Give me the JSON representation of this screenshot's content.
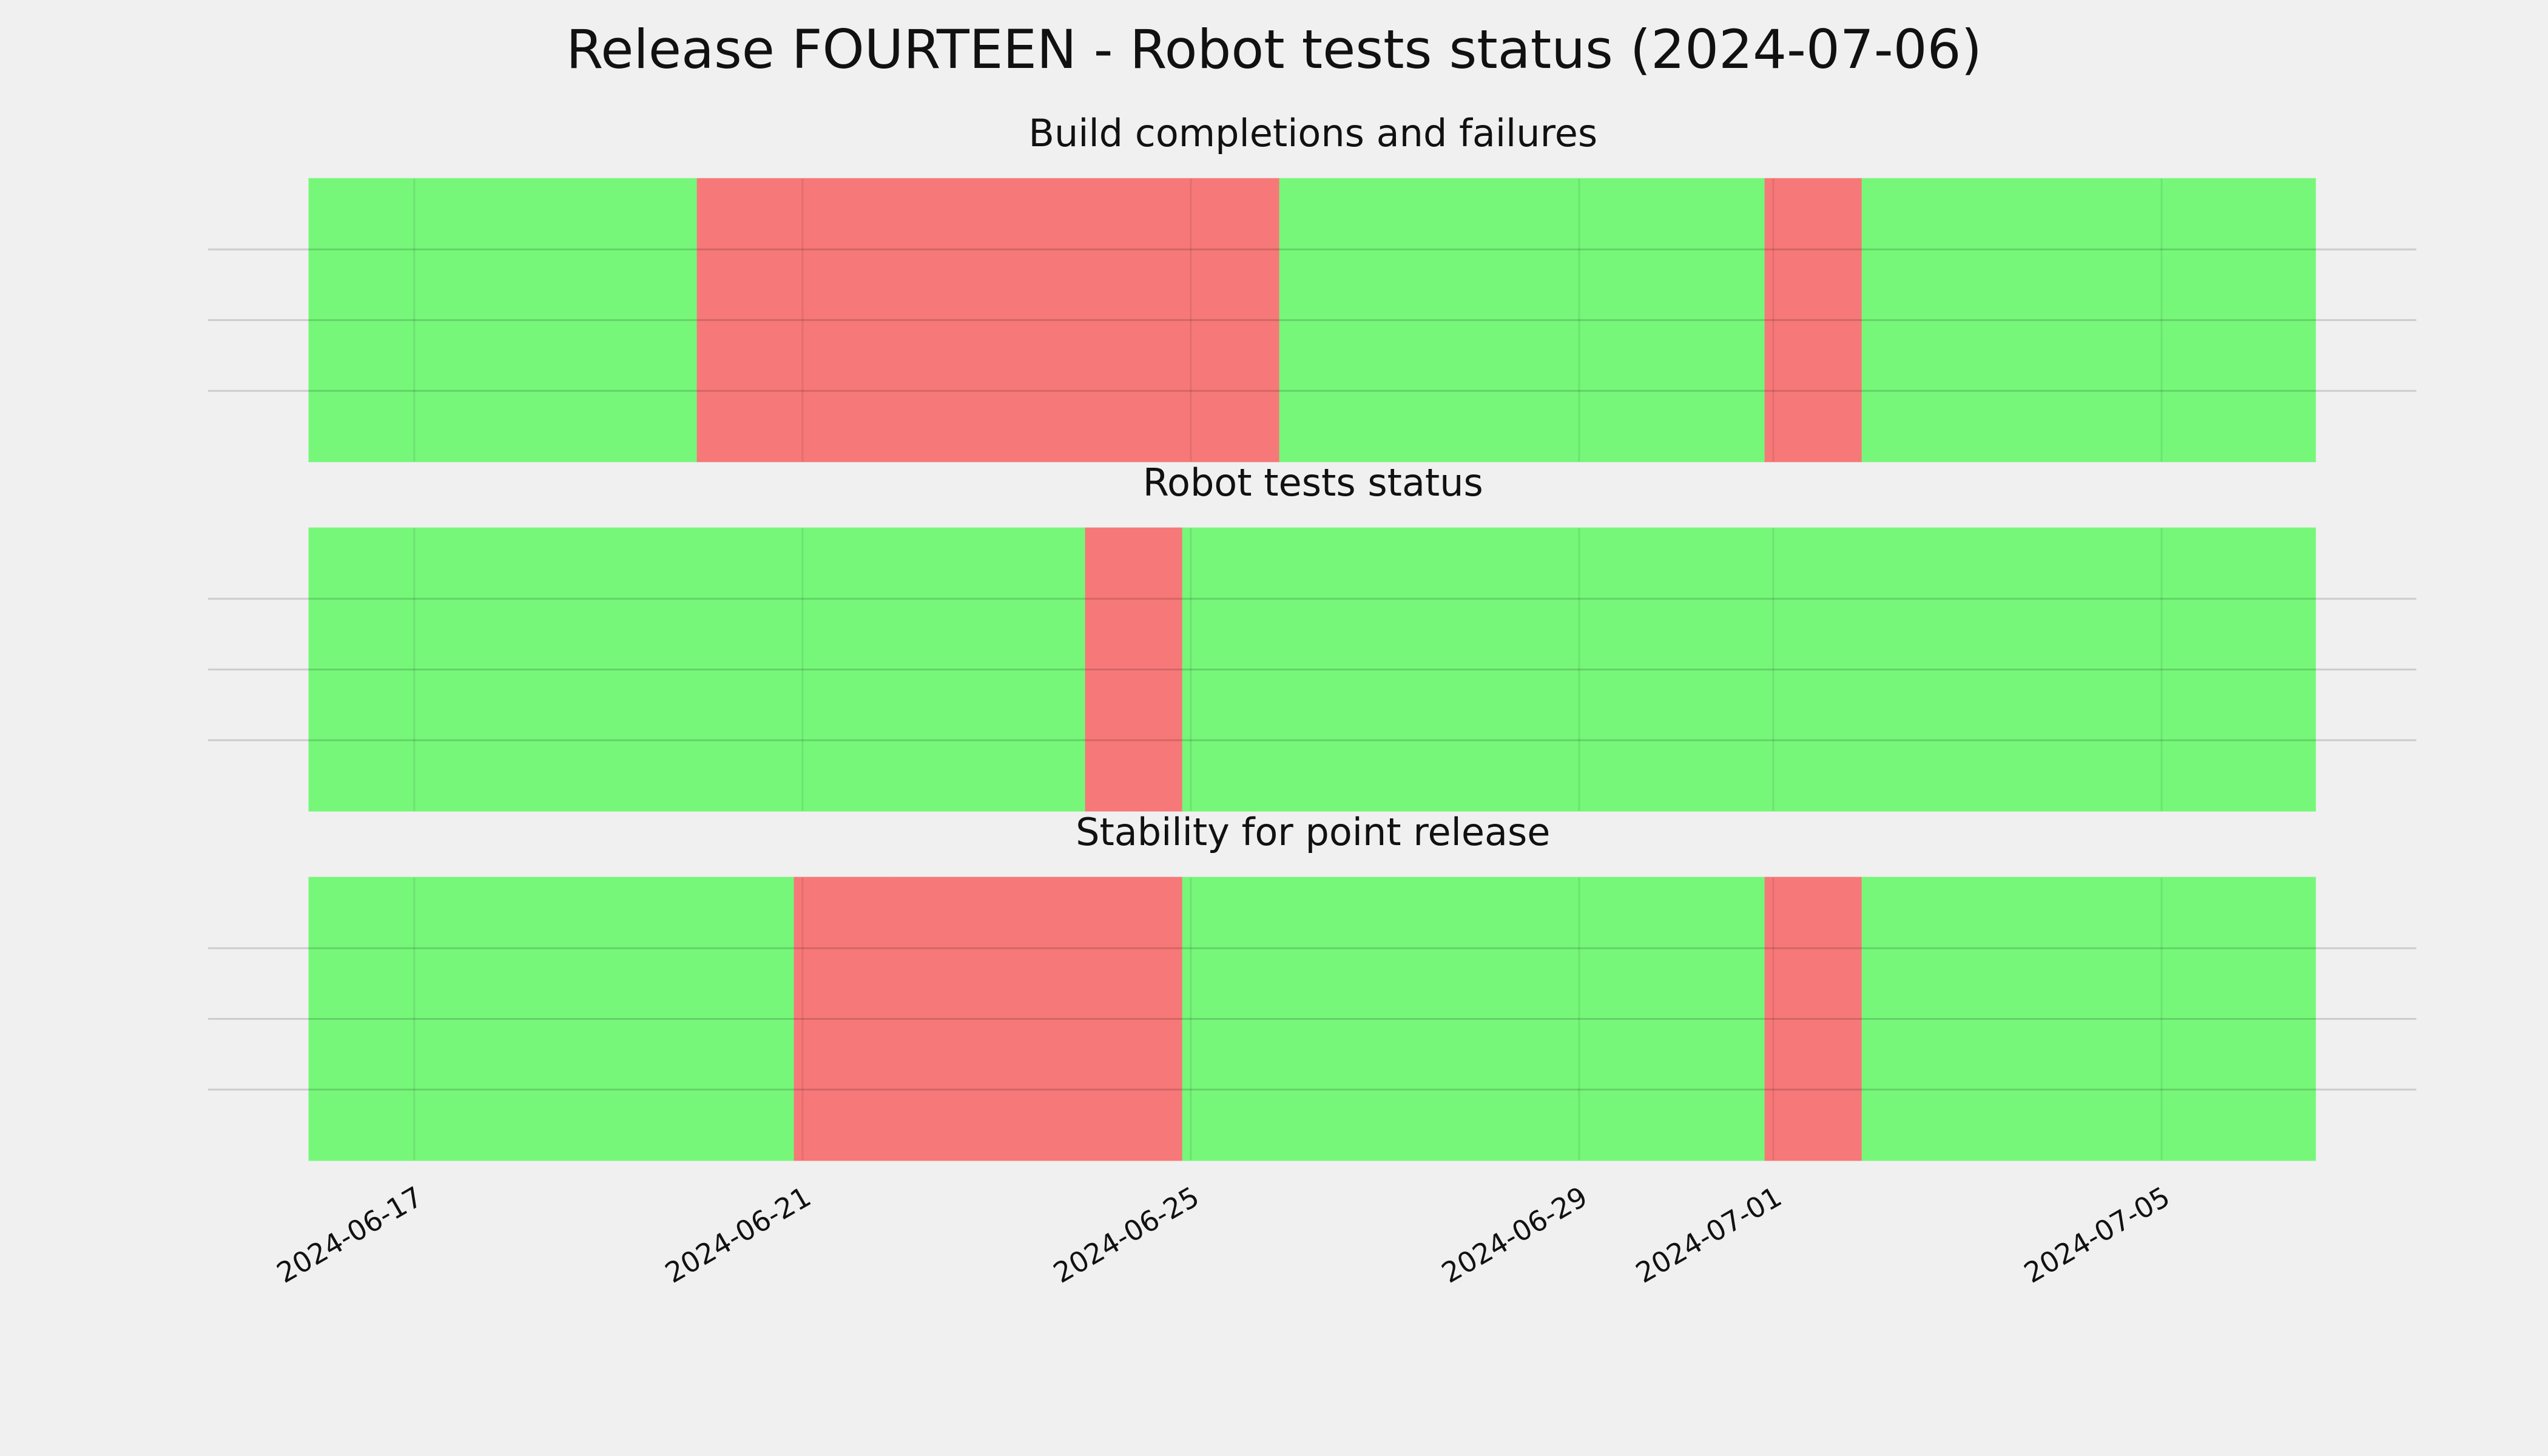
{
  "chart_data": {
    "type": "timeline",
    "title": "Release FOURTEEN - Robot tests status (2024-07-06)",
    "xlim": [
      "2024-06-14T21:00",
      "2024-07-07T15:00"
    ],
    "xticks": [
      "2024-06-17",
      "2024-06-21",
      "2024-06-25",
      "2024-06-29",
      "2024-07-01",
      "2024-07-05"
    ],
    "ylim": [
      0,
      1
    ],
    "yticks": [
      0.25,
      0.5,
      0.75
    ],
    "grid": true,
    "panels": [
      {
        "title": "Build completions and failures",
        "spans": [
          {
            "start": "2024-06-15T22:00",
            "end": "2024-06-19T22:00",
            "color": "#76f77a"
          },
          {
            "start": "2024-06-19T22:00",
            "end": "2024-06-25T22:00",
            "color": "#f77878"
          },
          {
            "start": "2024-06-25T22:00",
            "end": "2024-06-30T22:00",
            "color": "#76f77a"
          },
          {
            "start": "2024-06-30T22:00",
            "end": "2024-07-01T22:00",
            "color": "#f77878"
          },
          {
            "start": "2024-07-01T22:00",
            "end": "2024-07-06T14:00",
            "color": "#76f77a"
          }
        ]
      },
      {
        "title": "Robot tests status",
        "spans": [
          {
            "start": "2024-06-15T22:00",
            "end": "2024-06-23T22:00",
            "color": "#76f77a"
          },
          {
            "start": "2024-06-23T22:00",
            "end": "2024-06-24T22:00",
            "color": "#f77878"
          },
          {
            "start": "2024-06-24T22:00",
            "end": "2024-07-06T14:00",
            "color": "#76f77a"
          }
        ]
      },
      {
        "title": "Stability for point release",
        "spans": [
          {
            "start": "2024-06-15T22:00",
            "end": "2024-06-20T22:00",
            "color": "#76f77a"
          },
          {
            "start": "2024-06-20T22:00",
            "end": "2024-06-21T22:00",
            "color": "#f77878"
          },
          {
            "start": "2024-06-21T22:00",
            "end": "2024-06-23T22:00",
            "color": "#f77878"
          },
          {
            "start": "2024-06-23T22:00",
            "end": "2024-06-24T22:00",
            "color": "#f77878"
          },
          {
            "start": "2024-06-24T22:00",
            "end": "2024-06-30T22:00",
            "color": "#76f77a"
          },
          {
            "start": "2024-06-30T22:00",
            "end": "2024-07-01T22:00",
            "color": "#f77878"
          },
          {
            "start": "2024-07-01T22:00",
            "end": "2024-07-06T14:00",
            "color": "#76f77a"
          }
        ]
      }
    ]
  }
}
